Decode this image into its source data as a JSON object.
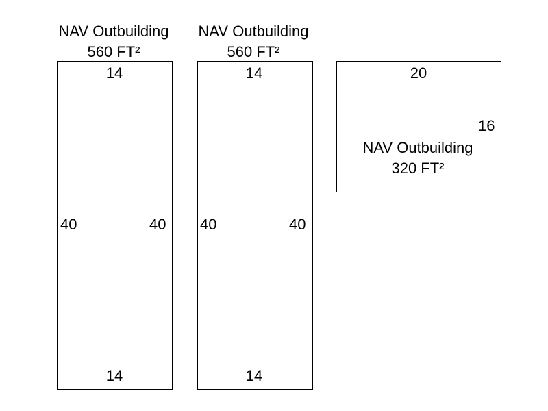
{
  "buildings": [
    {
      "name": "NAV Outbuilding",
      "area": "560 FT²",
      "dims": {
        "top": "14",
        "bottom": "14",
        "left": "40",
        "right": "40"
      }
    },
    {
      "name": "NAV Outbuilding",
      "area": "560 FT²",
      "dims": {
        "top": "14",
        "bottom": "14",
        "left": "40",
        "right": "40"
      }
    },
    {
      "name": "NAV Outbuilding",
      "area": "320 FT²",
      "dims": {
        "top": "20",
        "right": "16"
      }
    }
  ]
}
